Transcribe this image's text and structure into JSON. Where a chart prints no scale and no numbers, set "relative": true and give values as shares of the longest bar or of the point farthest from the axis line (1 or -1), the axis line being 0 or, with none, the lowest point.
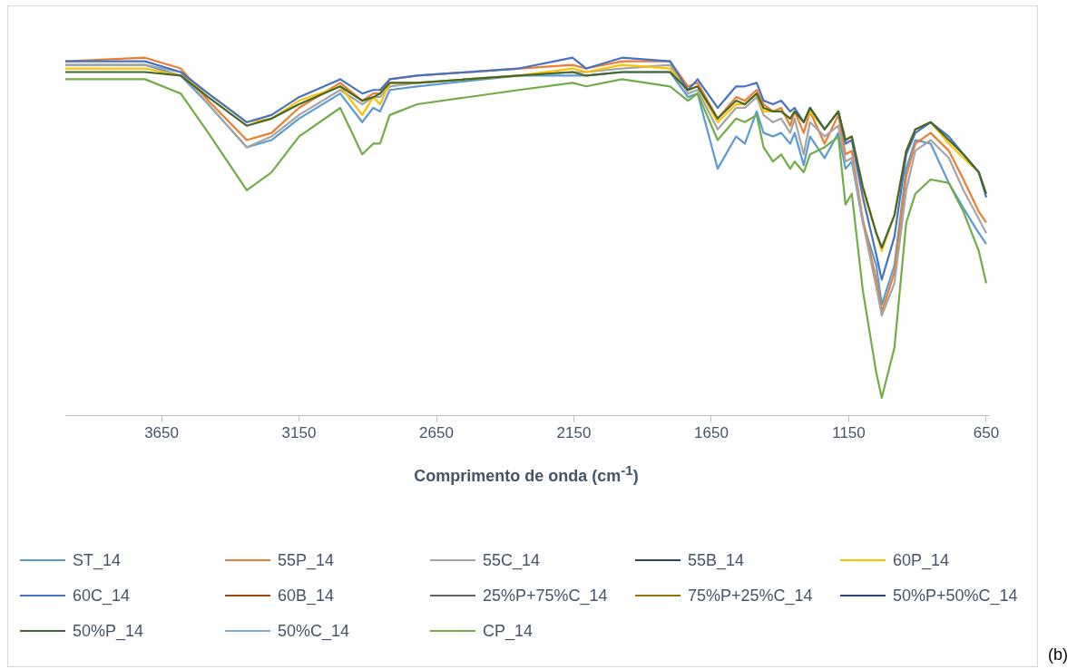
{
  "chart_data": {
    "type": "line",
    "relative": true,
    "xlabel": "Comprimento de onda (cm$^{-1}$)",
    "legend": "bottom",
    "grid": false,
    "marker": "none",
    "line_style": "solid",
    "tick_labels": "x",
    "xlim": [
      4000,
      640
    ],
    "xticks": [
      3650,
      3150,
      2650,
      2150,
      1650,
      1150,
      650
    ],
    "annotations": [
      "(b)"
    ],
    "x": [
      4000,
      3710,
      3580,
      3480,
      3340,
      3250,
      3150,
      3000,
      2920,
      2880,
      2855,
      2820,
      2720,
      2350,
      2155,
      2105,
      1975,
      1800,
      1735,
      1700,
      1627,
      1560,
      1528,
      1485,
      1460,
      1426,
      1396,
      1363,
      1347,
      1314,
      1291,
      1238,
      1188,
      1162,
      1139,
      1099,
      1050,
      1030,
      984,
      941,
      908,
      852,
      786,
      733,
      677,
      650
    ],
    "series": [
      {
        "name": "ST_14",
        "color": "#5b9bd5",
        "values": [
          0.98,
          0.98,
          0.95,
          0.87,
          0.75,
          0.77,
          0.83,
          0.9,
          0.82,
          0.86,
          0.85,
          0.91,
          0.92,
          0.95,
          0.95,
          0.95,
          0.96,
          0.96,
          0.89,
          0.9,
          0.69,
          0.78,
          0.76,
          0.85,
          0.79,
          0.78,
          0.79,
          0.76,
          0.79,
          0.7,
          0.78,
          0.72,
          0.79,
          0.69,
          0.71,
          0.54,
          0.42,
          0.31,
          0.42,
          0.69,
          0.77,
          0.76,
          0.65,
          0.58,
          0.51,
          0.48
        ]
      },
      {
        "name": "55P_14",
        "color": "#ed7d31",
        "values": [
          0.99,
          1.0,
          0.97,
          0.88,
          0.77,
          0.79,
          0.86,
          0.93,
          0.88,
          0.9,
          0.9,
          0.94,
          0.95,
          0.97,
          0.98,
          0.97,
          0.99,
          0.99,
          0.92,
          0.93,
          0.83,
          0.89,
          0.88,
          0.91,
          0.87,
          0.85,
          0.86,
          0.81,
          0.85,
          0.79,
          0.85,
          0.76,
          0.84,
          0.73,
          0.74,
          0.55,
          0.38,
          0.29,
          0.4,
          0.67,
          0.76,
          0.79,
          0.74,
          0.66,
          0.57,
          0.54
        ]
      },
      {
        "name": "55C_14",
        "color": "#a5a5a5",
        "values": [
          0.98,
          0.98,
          0.96,
          0.87,
          0.75,
          0.78,
          0.84,
          0.91,
          0.87,
          0.89,
          0.89,
          0.92,
          0.93,
          0.95,
          0.96,
          0.96,
          0.97,
          0.98,
          0.9,
          0.91,
          0.8,
          0.86,
          0.86,
          0.89,
          0.84,
          0.82,
          0.83,
          0.79,
          0.83,
          0.73,
          0.82,
          0.78,
          0.81,
          0.71,
          0.72,
          0.54,
          0.36,
          0.28,
          0.37,
          0.63,
          0.74,
          0.77,
          0.72,
          0.63,
          0.55,
          0.51
        ]
      },
      {
        "name": "55B_14",
        "color": "#264478",
        "values": [
          null,
          null,
          null,
          null,
          null,
          null,
          null,
          null,
          null,
          null,
          null,
          null,
          null,
          null,
          null,
          null,
          null,
          null,
          null,
          null,
          null,
          null,
          null,
          null,
          null,
          null,
          null,
          null,
          null,
          null,
          null,
          null,
          null,
          null,
          null,
          null,
          null,
          null,
          null,
          null,
          null,
          null,
          null,
          null,
          null,
          null
        ]
      },
      {
        "name": "60P_14",
        "color": "#ffc000",
        "values": [
          0.97,
          0.97,
          0.95,
          0.9,
          0.82,
          0.83,
          0.88,
          0.92,
          0.84,
          0.89,
          0.87,
          0.93,
          0.93,
          0.95,
          0.97,
          0.96,
          0.98,
          0.97,
          0.91,
          0.92,
          0.82,
          0.87,
          0.87,
          0.9,
          0.85,
          0.85,
          0.85,
          0.83,
          0.85,
          0.82,
          0.85,
          0.8,
          0.85,
          0.77,
          0.78,
          0.63,
          0.51,
          0.46,
          0.56,
          0.74,
          0.8,
          0.82,
          0.76,
          0.72,
          0.68,
          0.62
        ]
      },
      {
        "name": "60C_14",
        "color": "#4472c4",
        "values": [
          0.99,
          0.99,
          0.96,
          0.9,
          0.82,
          0.84,
          0.89,
          0.94,
          0.9,
          0.91,
          0.91,
          0.94,
          0.95,
          0.97,
          1.0,
          0.97,
          1.0,
          0.99,
          0.91,
          0.94,
          0.86,
          0.92,
          0.92,
          0.93,
          0.88,
          0.87,
          0.88,
          0.85,
          0.86,
          0.82,
          0.86,
          0.8,
          0.85,
          0.76,
          0.77,
          0.61,
          0.45,
          0.38,
          0.5,
          0.73,
          0.79,
          0.82,
          0.78,
          0.73,
          0.68,
          0.61
        ]
      },
      {
        "name": "60B_14",
        "color": "#9e480e",
        "values": [
          null,
          null,
          null,
          null,
          null,
          null,
          null,
          null,
          null,
          null,
          null,
          null,
          null,
          null,
          null,
          null,
          null,
          null,
          null,
          null,
          null,
          null,
          null,
          null,
          null,
          null,
          null,
          null,
          null,
          null,
          null,
          null,
          null,
          null,
          null,
          null,
          null,
          null,
          null,
          null,
          null,
          null,
          null,
          null,
          null,
          null
        ]
      },
      {
        "name": "25%P+75%C_14",
        "color": "#636363",
        "values": [
          null,
          null,
          null,
          null,
          null,
          null,
          null,
          null,
          null,
          null,
          null,
          null,
          null,
          null,
          null,
          null,
          null,
          null,
          null,
          null,
          null,
          null,
          null,
          null,
          null,
          null,
          null,
          null,
          null,
          null,
          null,
          null,
          null,
          null,
          null,
          null,
          null,
          null,
          null,
          null,
          null,
          null,
          null,
          null,
          null,
          null
        ]
      },
      {
        "name": "75%P+25%C_14",
        "color": "#997300",
        "values": [
          null,
          null,
          null,
          null,
          null,
          null,
          null,
          null,
          null,
          null,
          null,
          null,
          null,
          null,
          null,
          null,
          null,
          null,
          null,
          null,
          null,
          null,
          null,
          null,
          null,
          null,
          null,
          null,
          null,
          null,
          null,
          null,
          null,
          null,
          null,
          null,
          null,
          null,
          null,
          null,
          null,
          null,
          null,
          null,
          null,
          null
        ]
      },
      {
        "name": "50%P+50%C_14",
        "color": "#264478",
        "values": [
          null,
          null,
          null,
          null,
          null,
          null,
          null,
          null,
          null,
          null,
          null,
          null,
          null,
          null,
          null,
          null,
          null,
          null,
          null,
          null,
          null,
          null,
          null,
          null,
          null,
          null,
          null,
          null,
          null,
          null,
          null,
          null,
          null,
          null,
          null,
          null,
          null,
          null,
          null,
          null,
          null,
          null,
          null,
          null,
          null,
          null
        ]
      },
      {
        "name": "50%P_14",
        "color": "#43682b",
        "values": [
          0.96,
          0.96,
          0.95,
          0.89,
          0.81,
          0.83,
          0.87,
          0.92,
          0.88,
          0.89,
          0.9,
          0.93,
          0.93,
          0.95,
          0.96,
          0.95,
          0.96,
          0.96,
          0.91,
          0.92,
          0.83,
          0.88,
          0.87,
          0.9,
          0.86,
          0.85,
          0.85,
          0.83,
          0.85,
          0.82,
          0.86,
          0.8,
          0.85,
          0.77,
          0.78,
          0.64,
          0.51,
          0.47,
          0.56,
          0.74,
          0.8,
          0.82,
          0.77,
          0.73,
          0.68,
          0.62
        ]
      },
      {
        "name": "50%C_14",
        "color": "#7cafdd",
        "values": [
          null,
          null,
          null,
          null,
          null,
          null,
          null,
          null,
          null,
          null,
          null,
          null,
          null,
          null,
          null,
          null,
          null,
          null,
          null,
          null,
          null,
          null,
          null,
          null,
          null,
          null,
          null,
          null,
          null,
          null,
          null,
          null,
          null,
          null,
          null,
          null,
          null,
          null,
          null,
          null,
          null,
          null,
          null,
          null,
          null,
          null
        ]
      },
      {
        "name": "CP_14",
        "color": "#70ad47",
        "values": [
          0.94,
          0.94,
          0.9,
          0.79,
          0.63,
          0.68,
          0.78,
          0.86,
          0.73,
          0.76,
          0.76,
          0.84,
          0.87,
          0.91,
          0.93,
          0.92,
          0.94,
          0.92,
          0.88,
          0.9,
          0.77,
          0.83,
          0.82,
          0.84,
          0.75,
          0.71,
          0.73,
          0.69,
          0.71,
          0.68,
          0.73,
          0.75,
          0.78,
          0.59,
          0.62,
          0.35,
          0.12,
          0.05,
          0.19,
          0.54,
          0.62,
          0.66,
          0.65,
          0.57,
          0.46,
          0.37
        ]
      }
    ]
  }
}
